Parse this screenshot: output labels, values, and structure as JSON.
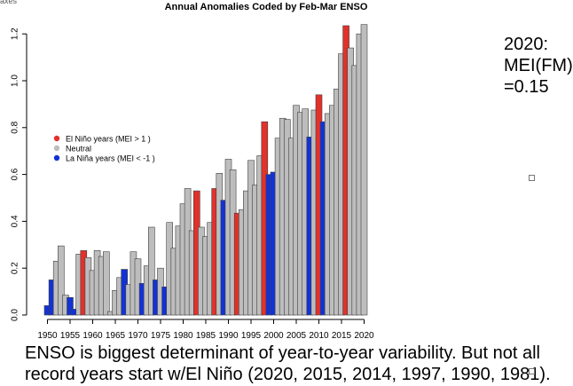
{
  "top_fragment": "axes",
  "chart_data": {
    "type": "bar",
    "title": "Annual Anomalies Coded by Feb-Mar ENSO",
    "xlabel": "",
    "ylabel": "",
    "ylim": [
      -0.02,
      1.26
    ],
    "yticks": [
      "0.0",
      "0.2",
      "0.4",
      "0.6",
      "0.8",
      "1.0",
      "1.2"
    ],
    "xticks": [
      "1950",
      "1955",
      "1960",
      "1965",
      "1970",
      "1975",
      "1980",
      "1985",
      "1990",
      "1995",
      "2000",
      "2005",
      "2010",
      "2015",
      "2020"
    ],
    "categories": [
      1950,
      1951,
      1952,
      1953,
      1954,
      1955,
      1956,
      1957,
      1958,
      1959,
      1960,
      1961,
      1962,
      1963,
      1964,
      1965,
      1966,
      1967,
      1968,
      1969,
      1970,
      1971,
      1972,
      1973,
      1974,
      1975,
      1976,
      1977,
      1978,
      1979,
      1980,
      1981,
      1982,
      1983,
      1984,
      1985,
      1986,
      1987,
      1988,
      1989,
      1990,
      1991,
      1992,
      1993,
      1994,
      1995,
      1996,
      1997,
      1998,
      1999,
      2000,
      2001,
      2002,
      2003,
      2004,
      2005,
      2006,
      2007,
      2008,
      2009,
      2010,
      2011,
      2012,
      2013,
      2014,
      2015,
      2016,
      2017,
      2018,
      2019,
      2020
    ],
    "values": [
      0.04,
      0.15,
      0.23,
      0.295,
      0.085,
      0.075,
      0.025,
      0.26,
      0.275,
      0.245,
      0.19,
      0.275,
      0.25,
      0.27,
      0.015,
      0.105,
      0.16,
      0.195,
      0.13,
      0.27,
      0.24,
      0.135,
      0.21,
      0.375,
      0.15,
      0.2,
      0.12,
      0.395,
      0.285,
      0.38,
      0.475,
      0.54,
      0.36,
      0.53,
      0.375,
      0.335,
      0.395,
      0.54,
      0.605,
      0.49,
      0.665,
      0.62,
      0.435,
      0.45,
      0.53,
      0.66,
      0.555,
      0.68,
      0.825,
      0.6,
      0.61,
      0.755,
      0.84,
      0.835,
      0.755,
      0.895,
      0.865,
      0.88,
      0.76,
      0.875,
      0.94,
      0.825,
      0.86,
      0.895,
      0.965,
      1.115,
      1.235,
      1.14,
      1.065,
      1.2,
      1.24
    ],
    "enso": [
      "L",
      "L",
      "N",
      "N",
      "N",
      "L",
      "L",
      "N",
      "E",
      "N",
      "N",
      "N",
      "N",
      "N",
      "N",
      "N",
      "N",
      "L",
      "N",
      "N",
      "N",
      "L",
      "N",
      "N",
      "L",
      "N",
      "L",
      "N",
      "N",
      "N",
      "N",
      "N",
      "N",
      "E",
      "N",
      "N",
      "N",
      "E",
      "N",
      "L",
      "N",
      "N",
      "E",
      "N",
      "N",
      "N",
      "N",
      "N",
      "E",
      "L",
      "L",
      "N",
      "N",
      "N",
      "N",
      "N",
      "N",
      "N",
      "L",
      "N",
      "E",
      "L",
      "N",
      "N",
      "N",
      "N",
      "E",
      "N",
      "N",
      "N",
      "N"
    ],
    "legend": [
      {
        "key": "E",
        "label": "El Niño years (MEI > 1 )"
      },
      {
        "key": "N",
        "label": "Neutral"
      },
      {
        "key": "L",
        "label": "La Niña years (MEI < -1 )"
      }
    ],
    "colors": {
      "E": "#e2312b",
      "N": "#bdbdbd",
      "L": "#1232d6"
    },
    "bar_outline": "#404040",
    "legend_position": "upper-left"
  },
  "side_note": "2020:\nMEI(FM)\n=0.15",
  "caption": {
    "line1": "ENSO is biggest determinant of year-to-year variability. But not all",
    "line2": "record years start w/El Niño (2020, 2015, 2014, 1997, 1990, 1981)."
  }
}
